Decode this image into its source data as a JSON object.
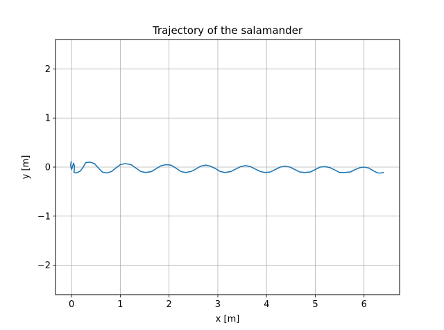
{
  "chart_data": {
    "type": "line",
    "title": "Trajectory of the salamander",
    "xlabel": "x [m]",
    "ylabel": "y [m]",
    "xlim": [
      -0.33,
      6.73
    ],
    "ylim": [
      -2.6,
      2.6
    ],
    "xticks": [
      0,
      1,
      2,
      3,
      4,
      5,
      6
    ],
    "xtick_labels": [
      "0",
      "1",
      "2",
      "3",
      "4",
      "5",
      "6"
    ],
    "yticks": [
      -2,
      -1,
      0,
      1,
      2
    ],
    "ytick_labels": [
      "−2",
      "−1",
      "0",
      "1",
      "2"
    ],
    "grid": true,
    "legend": "none",
    "series": [
      {
        "color": "#1f77b4",
        "points": [
          [
            -0.01,
            0.11
          ],
          [
            -0.02,
            0.03
          ],
          [
            0.0,
            -0.05
          ],
          [
            0.04,
            0.08
          ],
          [
            0.06,
            0.02
          ],
          [
            0.05,
            -0.11
          ],
          [
            0.1,
            -0.12
          ],
          [
            0.18,
            -0.08
          ],
          [
            0.24,
            0.0
          ],
          [
            0.29,
            0.09
          ],
          [
            0.38,
            0.1
          ],
          [
            0.47,
            0.07
          ],
          [
            0.55,
            -0.02
          ],
          [
            0.63,
            -0.1
          ],
          [
            0.72,
            -0.12
          ],
          [
            0.82,
            -0.09
          ],
          [
            0.92,
            -0.01
          ],
          [
            1.0,
            0.05
          ],
          [
            1.1,
            0.07
          ],
          [
            1.22,
            0.05
          ],
          [
            1.32,
            -0.02
          ],
          [
            1.42,
            -0.09
          ],
          [
            1.52,
            -0.11
          ],
          [
            1.64,
            -0.09
          ],
          [
            1.74,
            -0.03
          ],
          [
            1.84,
            0.03
          ],
          [
            1.94,
            0.05
          ],
          [
            2.04,
            0.04
          ],
          [
            2.14,
            -0.02
          ],
          [
            2.24,
            -0.09
          ],
          [
            2.34,
            -0.11
          ],
          [
            2.45,
            -0.09
          ],
          [
            2.55,
            -0.04
          ],
          [
            2.65,
            0.02
          ],
          [
            2.75,
            0.04
          ],
          [
            2.85,
            0.02
          ],
          [
            2.95,
            -0.03
          ],
          [
            3.05,
            -0.09
          ],
          [
            3.15,
            -0.11
          ],
          [
            3.27,
            -0.09
          ],
          [
            3.37,
            -0.04
          ],
          [
            3.47,
            0.01
          ],
          [
            3.57,
            0.03
          ],
          [
            3.67,
            0.01
          ],
          [
            3.77,
            -0.04
          ],
          [
            3.87,
            -0.09
          ],
          [
            3.97,
            -0.11
          ],
          [
            4.08,
            -0.1
          ],
          [
            4.18,
            -0.05
          ],
          [
            4.28,
            0.0
          ],
          [
            4.38,
            0.02
          ],
          [
            4.48,
            0.0
          ],
          [
            4.58,
            -0.05
          ],
          [
            4.68,
            -0.1
          ],
          [
            4.78,
            -0.11
          ],
          [
            4.9,
            -0.1
          ],
          [
            5.0,
            -0.05
          ],
          [
            5.1,
            0.0
          ],
          [
            5.2,
            0.01
          ],
          [
            5.3,
            -0.01
          ],
          [
            5.4,
            -0.06
          ],
          [
            5.5,
            -0.11
          ],
          [
            5.6,
            -0.11
          ],
          [
            5.72,
            -0.1
          ],
          [
            5.82,
            -0.05
          ],
          [
            5.92,
            -0.01
          ],
          [
            6.0,
            0.0
          ],
          [
            6.1,
            -0.02
          ],
          [
            6.2,
            -0.08
          ],
          [
            6.28,
            -0.12
          ],
          [
            6.35,
            -0.12
          ],
          [
            6.4,
            -0.11
          ]
        ]
      }
    ]
  }
}
